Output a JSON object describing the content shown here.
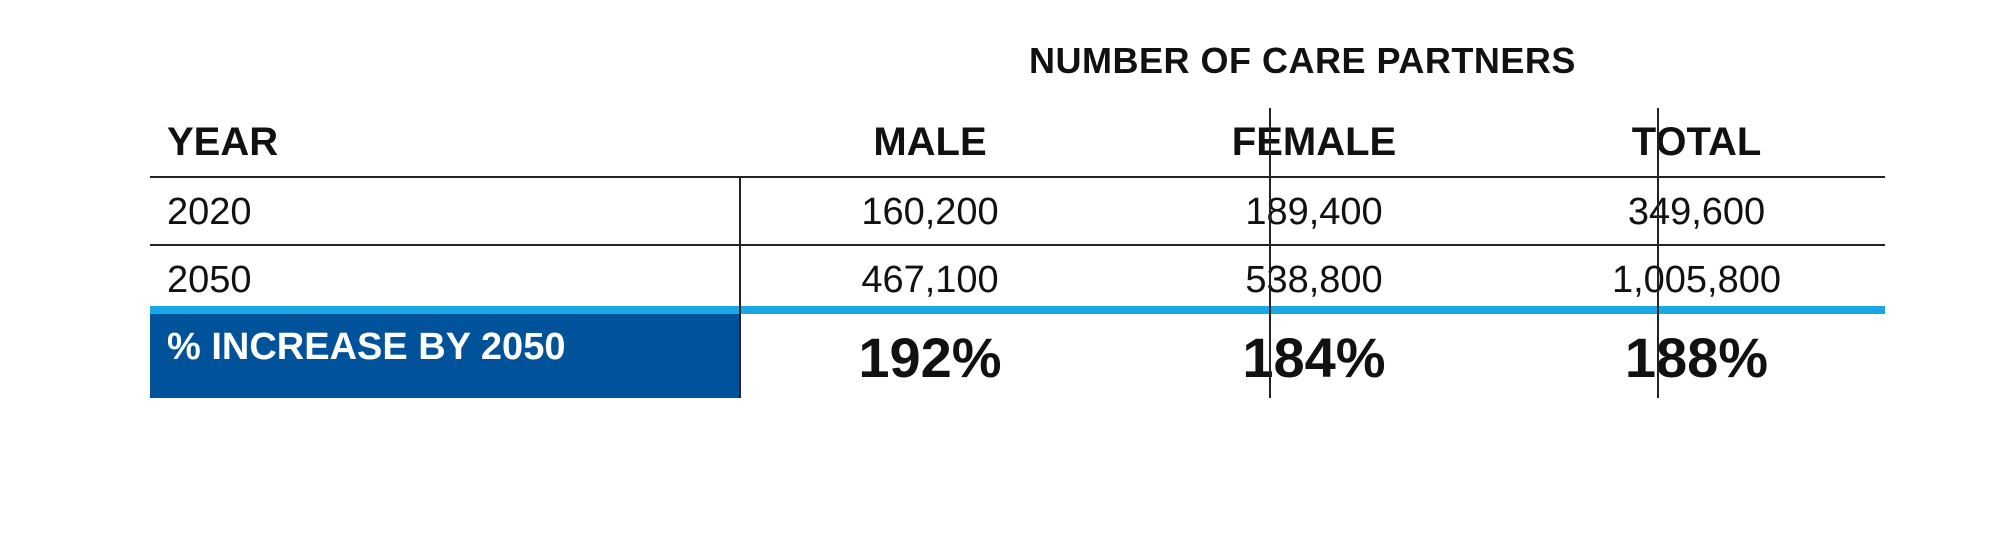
{
  "table": {
    "super_header": "NUMBER OF CARE PARTNERS",
    "columns": {
      "year": "YEAR",
      "male": "MALE",
      "female": "FEMALE",
      "total": "TOTAL"
    },
    "rows": [
      {
        "year": "2020",
        "male": "160,200",
        "female": "189,400",
        "total": "349,600"
      },
      {
        "year": "2050",
        "male": "467,100",
        "female": "538,800",
        "total": "1,005,800"
      }
    ],
    "increase": {
      "label": "% INCREASE BY 2050",
      "male": "192%",
      "female": "184%",
      "total": "188%"
    },
    "colors": {
      "accent_rule": "#1aa7e6",
      "label_background": "#00529b",
      "label_text": "#ffffff"
    }
  }
}
